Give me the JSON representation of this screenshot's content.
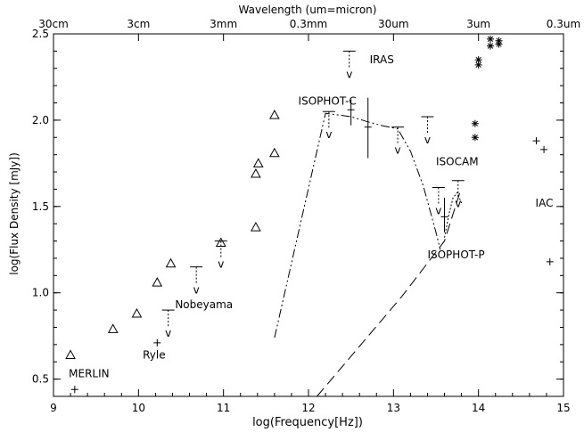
{
  "chart_data": {
    "type": "scatter",
    "title": "",
    "top_axis_label": "Wavelength (um=micron)",
    "xlabel": "log(Frequency[Hz])",
    "ylabel": "log(Flux Density [mJy])",
    "xlim": [
      9,
      15
    ],
    "ylim": [
      0.4,
      2.5
    ],
    "xticks": [
      "9",
      "10",
      "11",
      "12",
      "13",
      "14",
      "15"
    ],
    "yticks": [
      "0.5",
      "1.0",
      "1.5",
      "2.0",
      "2.5"
    ],
    "top_ticks": [
      {
        "x": 9.0,
        "label": "30cm"
      },
      {
        "x": 10.0,
        "label": "3cm"
      },
      {
        "x": 11.0,
        "label": "3mm"
      },
      {
        "x": 12.0,
        "label": "0.3mm"
      },
      {
        "x": 13.0,
        "label": "30um"
      },
      {
        "x": 14.0,
        "label": "3um"
      },
      {
        "x": 15.0,
        "label": "0.3um"
      }
    ],
    "triangles": [
      {
        "x": 9.2,
        "y": 0.64
      },
      {
        "x": 9.7,
        "y": 0.79
      },
      {
        "x": 9.98,
        "y": 0.88
      },
      {
        "x": 10.22,
        "y": 1.06
      },
      {
        "x": 10.38,
        "y": 1.17
      },
      {
        "x": 10.97,
        "y": 1.29
      },
      {
        "x": 11.38,
        "y": 1.38
      },
      {
        "x": 11.38,
        "y": 1.69
      },
      {
        "x": 11.41,
        "y": 1.75
      },
      {
        "x": 11.6,
        "y": 1.81
      },
      {
        "x": 11.6,
        "y": 2.03
      }
    ],
    "plus_points": [
      {
        "x": 9.25,
        "y": 0.44
      },
      {
        "x": 10.22,
        "y": 0.71
      },
      {
        "x": 14.68,
        "y": 1.88
      },
      {
        "x": 14.77,
        "y": 1.83
      },
      {
        "x": 14.84,
        "y": 1.18
      }
    ],
    "asterisks": [
      {
        "x": 13.96,
        "y": 1.98
      },
      {
        "x": 13.96,
        "y": 1.9
      },
      {
        "x": 14.0,
        "y": 2.35
      },
      {
        "x": 14.0,
        "y": 2.32
      },
      {
        "x": 14.14,
        "y": 2.47
      },
      {
        "x": 14.14,
        "y": 2.43
      },
      {
        "x": 14.24,
        "y": 2.46
      },
      {
        "x": 14.24,
        "y": 2.44
      }
    ],
    "upper_limits": [
      {
        "x": 10.35,
        "y": 0.9
      },
      {
        "x": 10.68,
        "y": 1.15
      },
      {
        "x": 10.97,
        "y": 1.3
      },
      {
        "x": 12.24,
        "y": 2.05
      },
      {
        "x": 12.48,
        "y": 2.4
      },
      {
        "x": 13.05,
        "y": 1.96
      },
      {
        "x": 13.4,
        "y": 2.02
      },
      {
        "x": 13.53,
        "y": 1.61
      },
      {
        "x": 13.76,
        "y": 1.65
      }
    ],
    "error_bars": [
      {
        "x": 12.5,
        "y": 2.06,
        "ylow": 1.97,
        "yhigh": 2.12
      },
      {
        "x": 12.7,
        "y": 1.96,
        "ylow": 1.78,
        "yhigh": 2.13
      },
      {
        "x": 13.6,
        "y": 1.44,
        "ylow": 1.35,
        "yhigh": 1.55
      }
    ],
    "curves": [
      {
        "style": "dash-dot-dot",
        "x": [
          11.6,
          12.2,
          12.5,
          12.7,
          12.85,
          13.05,
          13.2,
          13.35,
          13.5,
          13.55
        ],
        "y": [
          0.74,
          2.04,
          2.02,
          1.99,
          1.97,
          1.95,
          1.82,
          1.62,
          1.35,
          1.25
        ]
      },
      {
        "style": "dashed",
        "x": [
          12.1,
          13.1,
          13.6,
          13.78
        ],
        "y": [
          0.4,
          0.98,
          1.3,
          1.58
        ]
      },
      {
        "style": "dotted",
        "x": [
          13.6,
          13.65,
          13.7,
          13.75,
          13.8
        ],
        "y": [
          1.32,
          1.45,
          1.55,
          1.58,
          1.52
        ]
      }
    ],
    "annotations": [
      {
        "text": "MERLIN",
        "x": 9.18,
        "y": 0.51
      },
      {
        "text": "Ryle",
        "x": 10.05,
        "y": 0.62
      },
      {
        "text": "Nobeyama",
        "x": 10.43,
        "y": 0.91
      },
      {
        "text": "ISOPHOT-C",
        "x": 11.88,
        "y": 2.09
      },
      {
        "text": "IRAS",
        "x": 12.72,
        "y": 2.33
      },
      {
        "text": "ISOCAM",
        "x": 13.5,
        "y": 1.74
      },
      {
        "text": "IAC",
        "x": 14.67,
        "y": 1.5
      },
      {
        "text": "ISOPHOT-P",
        "x": 13.4,
        "y": 1.2
      }
    ],
    "grid": false,
    "legend": "none"
  }
}
